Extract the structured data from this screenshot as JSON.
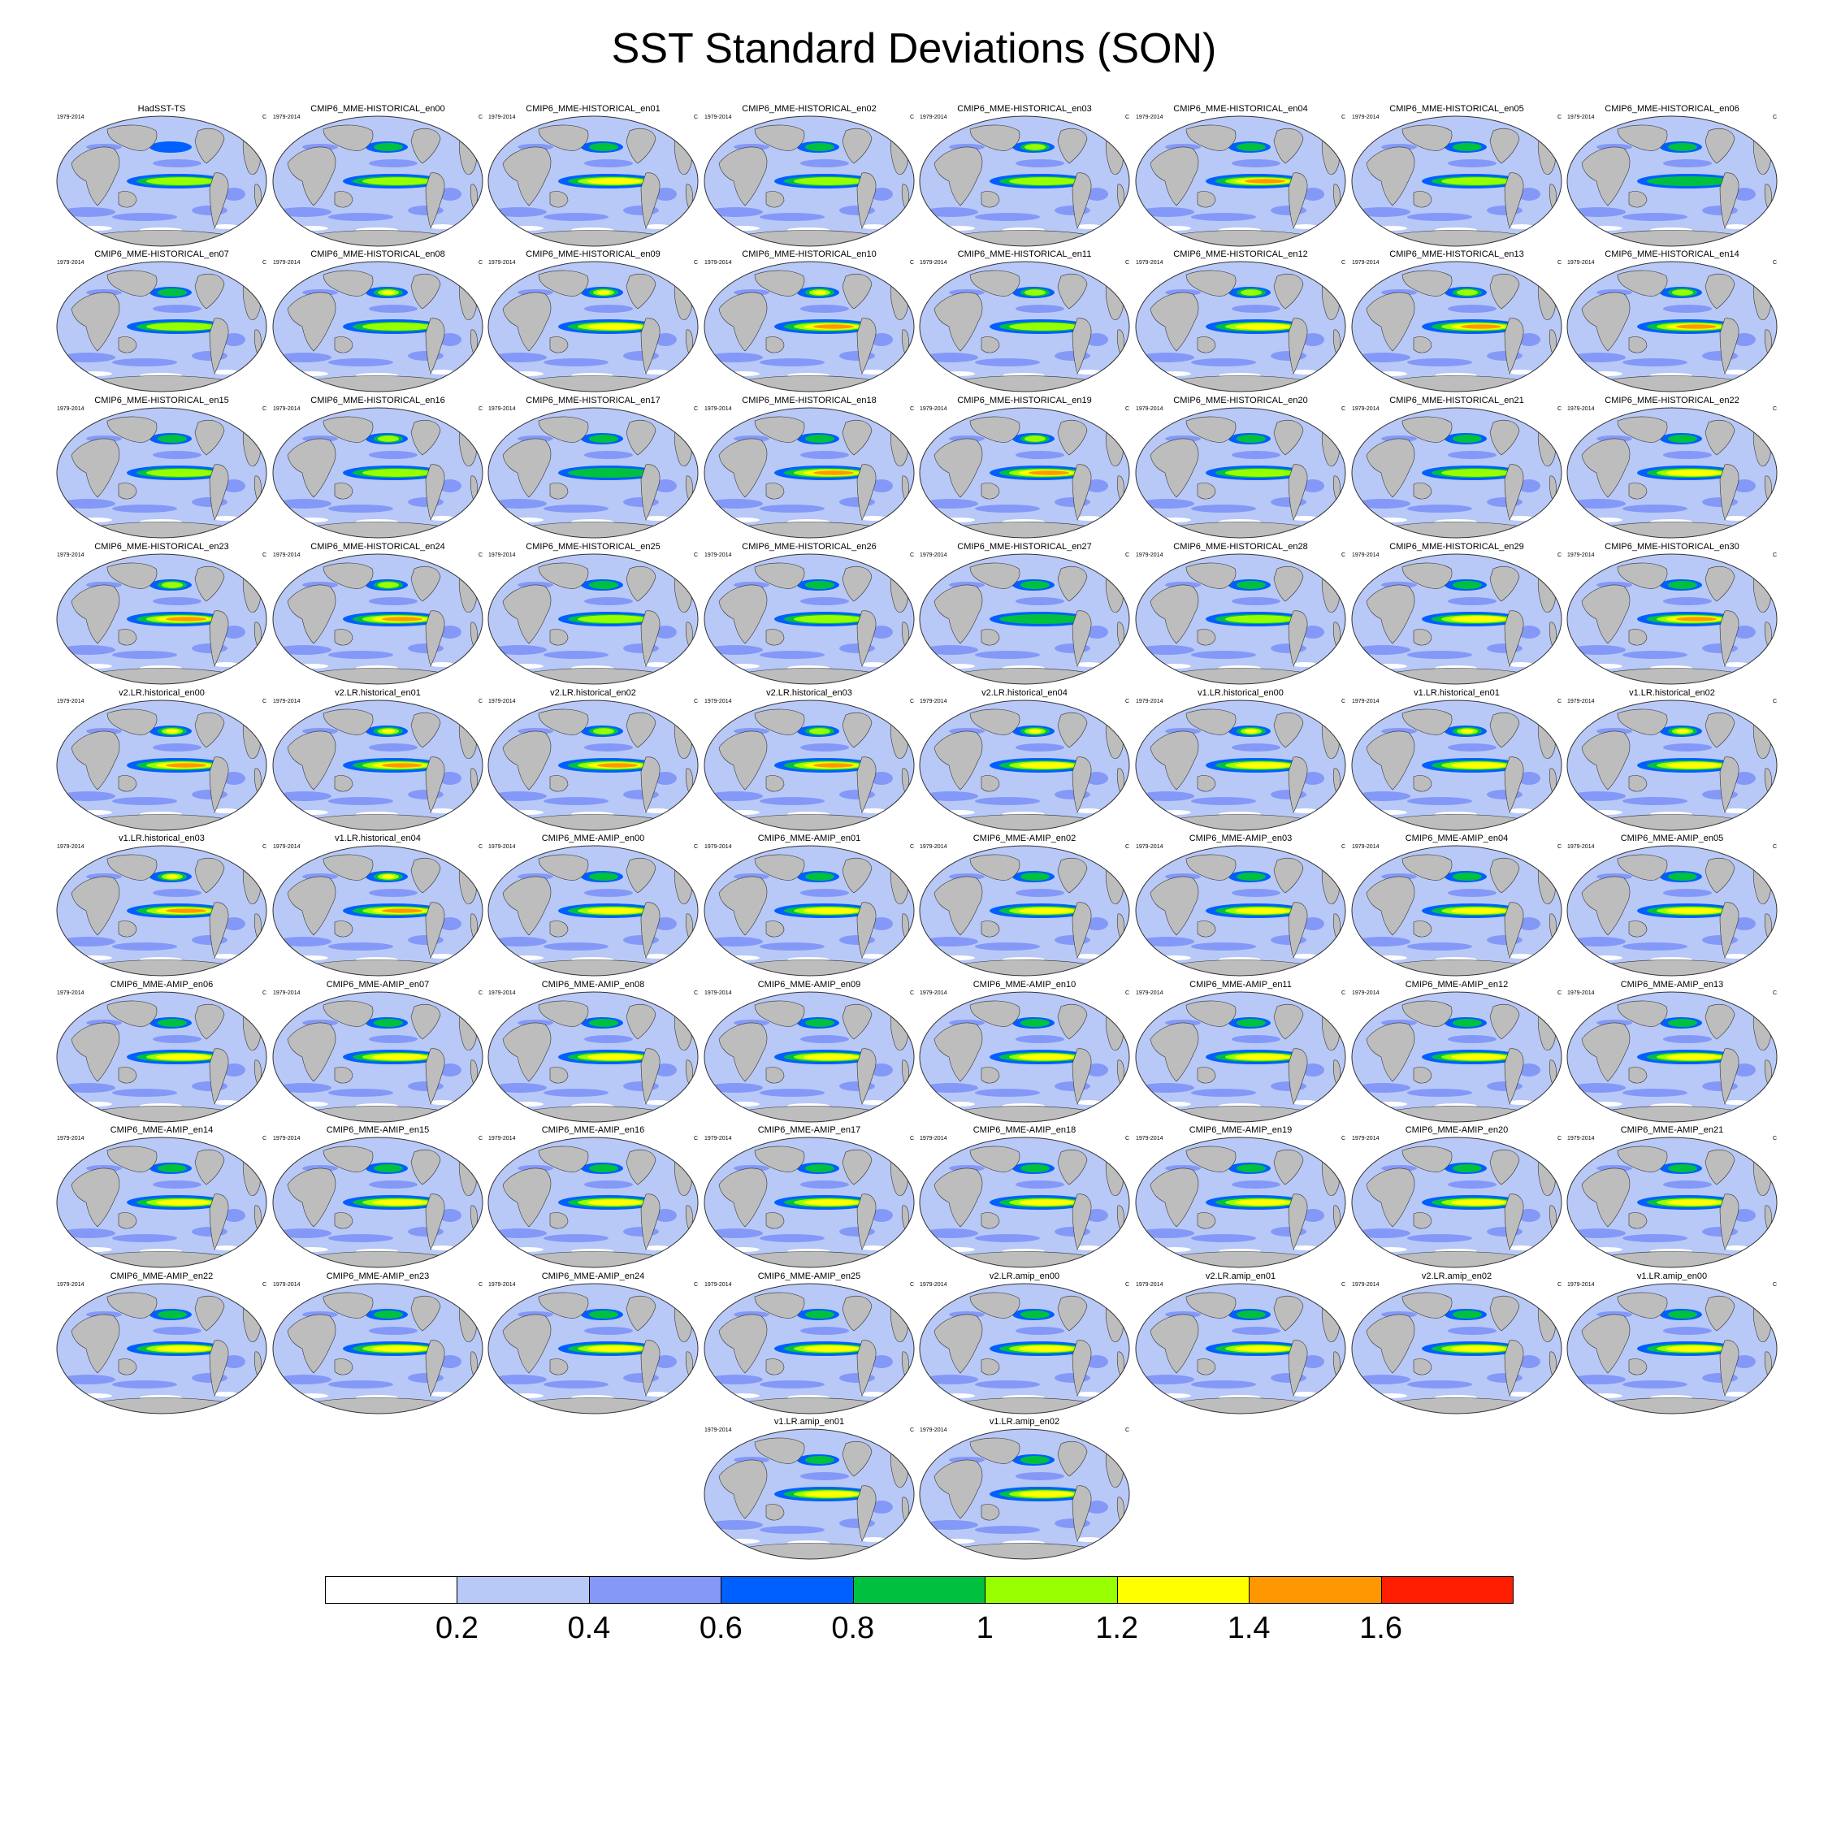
{
  "figure": {
    "title": "SST Standard Deviations (SON)",
    "period": "1979-2014",
    "units": "C"
  },
  "map_style": {
    "ocean_base": "#b8c9f8",
    "land": "#bdbdbd",
    "outline": "#333333",
    "tongue_colors": [
      "#00c040",
      "#98ff00",
      "#ffff00",
      "#ff9800",
      "#ff1e00"
    ]
  },
  "panels": [
    {
      "title": "HadSST-TS",
      "enso": 2,
      "north": 0
    },
    {
      "title": "CMIP6_MME-HISTORICAL_en00",
      "enso": 2,
      "north": 1
    },
    {
      "title": "CMIP6_MME-HISTORICAL_en01",
      "enso": 3,
      "north": 1
    },
    {
      "title": "CMIP6_MME-HISTORICAL_en02",
      "enso": 2,
      "north": 1
    },
    {
      "title": "CMIP6_MME-HISTORICAL_en03",
      "enso": 2,
      "north": 2
    },
    {
      "title": "CMIP6_MME-HISTORICAL_en04",
      "enso": 4,
      "north": 1
    },
    {
      "title": "CMIP6_MME-HISTORICAL_en05",
      "enso": 2,
      "north": 1
    },
    {
      "title": "CMIP6_MME-HISTORICAL_en06",
      "enso": 1,
      "north": 1
    },
    {
      "title": "CMIP6_MME-HISTORICAL_en07",
      "enso": 2,
      "north": 1
    },
    {
      "title": "CMIP6_MME-HISTORICAL_en08",
      "enso": 2,
      "north": 3
    },
    {
      "title": "CMIP6_MME-HISTORICAL_en09",
      "enso": 3,
      "north": 3
    },
    {
      "title": "CMIP6_MME-HISTORICAL_en10",
      "enso": 4,
      "north": 3
    },
    {
      "title": "CMIP6_MME-HISTORICAL_en11",
      "enso": 2,
      "north": 2
    },
    {
      "title": "CMIP6_MME-HISTORICAL_en12",
      "enso": 3,
      "north": 2
    },
    {
      "title": "CMIP6_MME-HISTORICAL_en13",
      "enso": 4,
      "north": 2
    },
    {
      "title": "CMIP6_MME-HISTORICAL_en14",
      "enso": 4,
      "north": 2
    },
    {
      "title": "CMIP6_MME-HISTORICAL_en15",
      "enso": 2,
      "north": 1
    },
    {
      "title": "CMIP6_MME-HISTORICAL_en16",
      "enso": 2,
      "north": 2
    },
    {
      "title": "CMIP6_MME-HISTORICAL_en17",
      "enso": 1,
      "north": 1
    },
    {
      "title": "CMIP6_MME-HISTORICAL_en18",
      "enso": 4,
      "north": 1
    },
    {
      "title": "CMIP6_MME-HISTORICAL_en19",
      "enso": 4,
      "north": 2
    },
    {
      "title": "CMIP6_MME-HISTORICAL_en20",
      "enso": 2,
      "north": 1
    },
    {
      "title": "CMIP6_MME-HISTORICAL_en21",
      "enso": 2,
      "north": 1
    },
    {
      "title": "CMIP6_MME-HISTORICAL_en22",
      "enso": 3,
      "north": 1
    },
    {
      "title": "CMIP6_MME-HISTORICAL_en23",
      "enso": 4,
      "north": 2
    },
    {
      "title": "CMIP6_MME-HISTORICAL_en24",
      "enso": 4,
      "north": 2
    },
    {
      "title": "CMIP6_MME-HISTORICAL_en25",
      "enso": 2,
      "north": 1
    },
    {
      "title": "CMIP6_MME-HISTORICAL_en26",
      "enso": 2,
      "north": 1
    },
    {
      "title": "CMIP6_MME-HISTORICAL_en27",
      "enso": 1,
      "north": 1
    },
    {
      "title": "CMIP6_MME-HISTORICAL_en28",
      "enso": 2,
      "north": 1
    },
    {
      "title": "CMIP6_MME-HISTORICAL_en29",
      "enso": 3,
      "north": 1
    },
    {
      "title": "CMIP6_MME-HISTORICAL_en30",
      "enso": 4,
      "north": 1
    },
    {
      "title": "v2.LR.historical_en00",
      "enso": 4,
      "north": 3
    },
    {
      "title": "v2.LR.historical_en01",
      "enso": 4,
      "north": 3
    },
    {
      "title": "v2.LR.historical_en02",
      "enso": 4,
      "north": 2
    },
    {
      "title": "v2.LR.historical_en03",
      "enso": 4,
      "north": 2
    },
    {
      "title": "v2.LR.historical_en04",
      "enso": 3,
      "north": 3
    },
    {
      "title": "v1.LR.historical_en00",
      "enso": 3,
      "north": 3
    },
    {
      "title": "v1.LR.historical_en01",
      "enso": 3,
      "north": 3
    },
    {
      "title": "v1.LR.historical_en02",
      "enso": 3,
      "north": 3
    },
    {
      "title": "v1.LR.historical_en03",
      "enso": 4,
      "north": 3
    },
    {
      "title": "v1.LR.historical_en04",
      "enso": 4,
      "north": 3
    },
    {
      "title": "CMIP6_MME-AMIP_en00",
      "enso": 3,
      "north": 1
    },
    {
      "title": "CMIP6_MME-AMIP_en01",
      "enso": 3,
      "north": 1
    },
    {
      "title": "CMIP6_MME-AMIP_en02",
      "enso": 3,
      "north": 1
    },
    {
      "title": "CMIP6_MME-AMIP_en03",
      "enso": 3,
      "north": 1
    },
    {
      "title": "CMIP6_MME-AMIP_en04",
      "enso": 3,
      "north": 1
    },
    {
      "title": "CMIP6_MME-AMIP_en05",
      "enso": 3,
      "north": 1
    },
    {
      "title": "CMIP6_MME-AMIP_en06",
      "enso": 3,
      "north": 1
    },
    {
      "title": "CMIP6_MME-AMIP_en07",
      "enso": 3,
      "north": 1
    },
    {
      "title": "CMIP6_MME-AMIP_en08",
      "enso": 3,
      "north": 1
    },
    {
      "title": "CMIP6_MME-AMIP_en09",
      "enso": 3,
      "north": 1
    },
    {
      "title": "CMIP6_MME-AMIP_en10",
      "enso": 3,
      "north": 1
    },
    {
      "title": "CMIP6_MME-AMIP_en11",
      "enso": 3,
      "north": 1
    },
    {
      "title": "CMIP6_MME-AMIP_en12",
      "enso": 3,
      "north": 1
    },
    {
      "title": "CMIP6_MME-AMIP_en13",
      "enso": 3,
      "north": 1
    },
    {
      "title": "CMIP6_MME-AMIP_en14",
      "enso": 3,
      "north": 1
    },
    {
      "title": "CMIP6_MME-AMIP_en15",
      "enso": 3,
      "north": 1
    },
    {
      "title": "CMIP6_MME-AMIP_en16",
      "enso": 3,
      "north": 1
    },
    {
      "title": "CMIP6_MME-AMIP_en17",
      "enso": 3,
      "north": 1
    },
    {
      "title": "CMIP6_MME-AMIP_en18",
      "enso": 3,
      "north": 1
    },
    {
      "title": "CMIP6_MME-AMIP_en19",
      "enso": 3,
      "north": 1
    },
    {
      "title": "CMIP6_MME-AMIP_en20",
      "enso": 3,
      "north": 1
    },
    {
      "title": "CMIP6_MME-AMIP_en21",
      "enso": 3,
      "north": 1
    },
    {
      "title": "CMIP6_MME-AMIP_en22",
      "enso": 3,
      "north": 1
    },
    {
      "title": "CMIP6_MME-AMIP_en23",
      "enso": 3,
      "north": 1
    },
    {
      "title": "CMIP6_MME-AMIP_en24",
      "enso": 3,
      "north": 1
    },
    {
      "title": "CMIP6_MME-AMIP_en25",
      "enso": 3,
      "north": 1
    },
    {
      "title": "v2.LR.amip_en00",
      "enso": 3,
      "north": 1
    },
    {
      "title": "v2.LR.amip_en01",
      "enso": 3,
      "north": 1
    },
    {
      "title": "v2.LR.amip_en02",
      "enso": 3,
      "north": 1
    },
    {
      "title": "v1.LR.amip_en00",
      "enso": 3,
      "north": 1
    },
    {
      "title": "v1.LR.amip_en01",
      "enso": 3,
      "north": 1
    },
    {
      "title": "v1.LR.amip_en02",
      "enso": 3,
      "north": 1
    }
  ],
  "colorbar": {
    "colors": [
      "#ffffff",
      "#b8c9f8",
      "#8498f8",
      "#0060ff",
      "#00c040",
      "#98ff00",
      "#ffff00",
      "#ff9800",
      "#ff1e00"
    ],
    "labels": [
      "0.2",
      "0.4",
      "0.6",
      "0.8",
      "1",
      "1.2",
      "1.4",
      "1.6"
    ]
  }
}
